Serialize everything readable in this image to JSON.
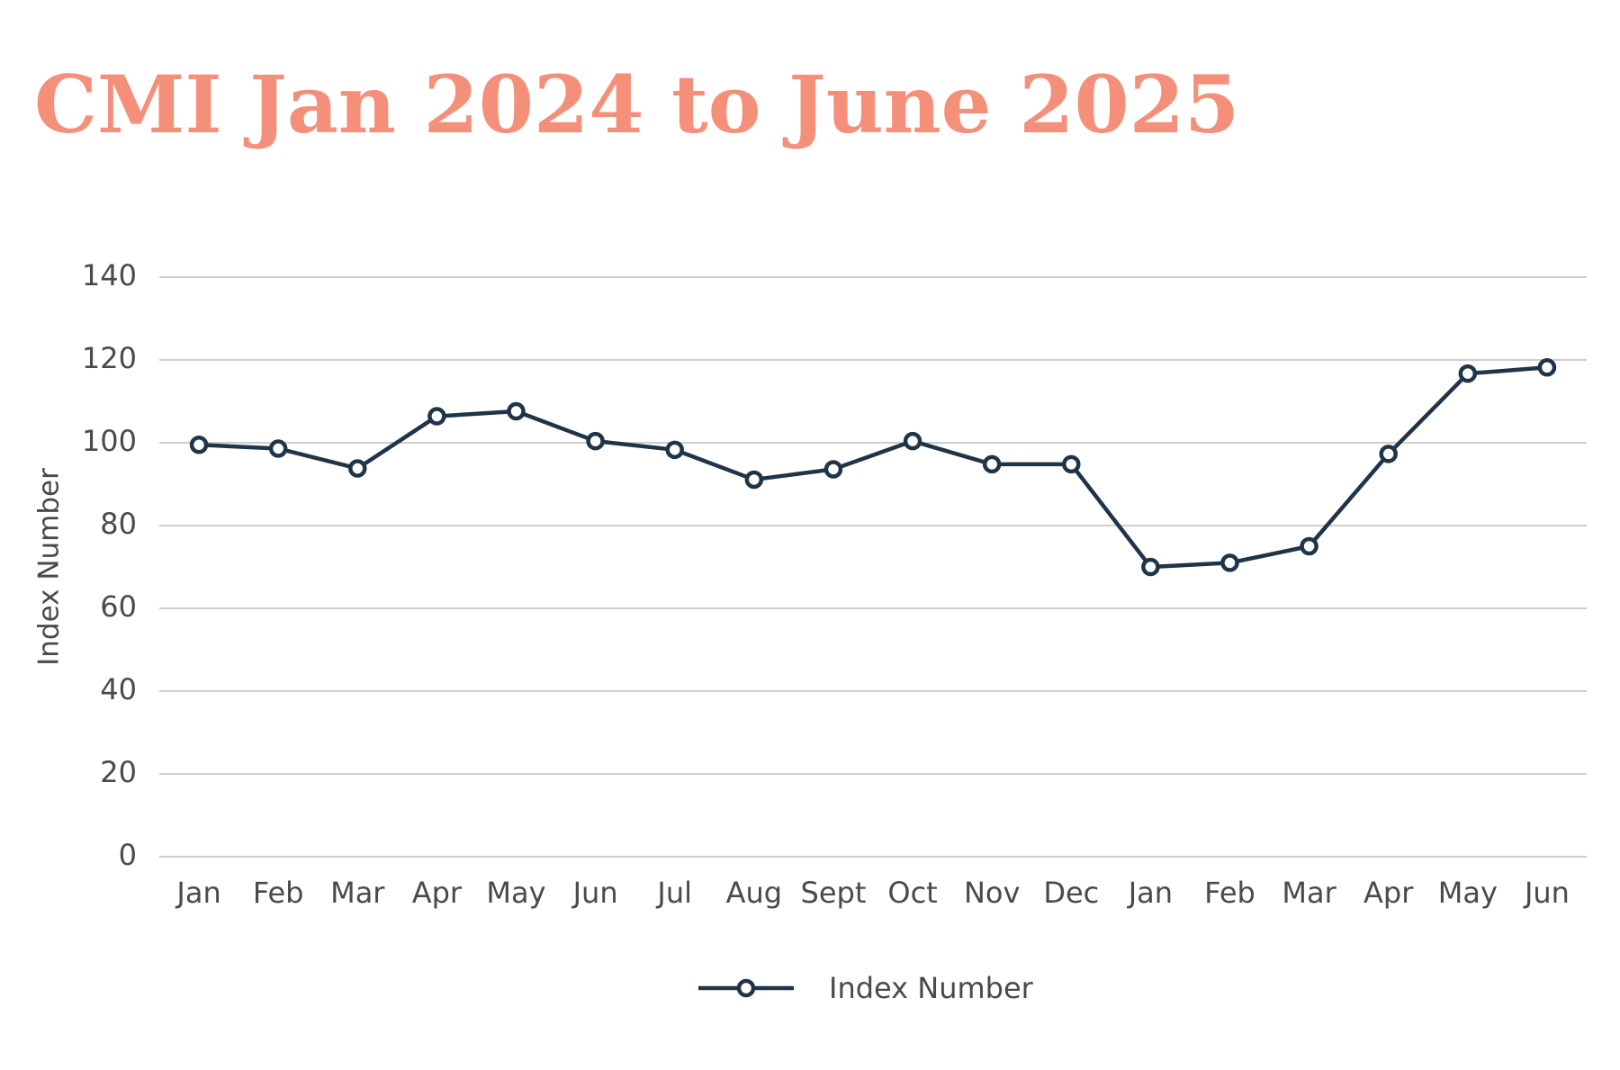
{
  "chart_data": {
    "type": "line",
    "title": "CMI Jan 2024 to June 2025",
    "y_label": "Index Number",
    "categories": [
      "Jan",
      "Feb",
      "Mar",
      "Apr",
      "May",
      "Jun",
      "Jul",
      "Aug",
      "Sept",
      "Oct",
      "Nov",
      "Dec",
      "Jan",
      "Feb",
      "Mar",
      "Apr",
      "May",
      "Jun"
    ],
    "series": [
      {
        "name": "Index Number",
        "color": "#1f3447",
        "values": [
          99.5,
          98.6,
          93.8,
          106.4,
          107.6,
          100.4,
          98.3,
          91.1,
          93.6,
          100.4,
          94.8,
          94.8,
          70.0,
          71.0,
          75.0,
          97.3,
          116.7,
          118.2
        ]
      }
    ],
    "ylim": [
      0,
      140
    ],
    "yticks": [
      0,
      20,
      40,
      60,
      80,
      100,
      120,
      140
    ],
    "grid": true,
    "legend": "bottom"
  }
}
